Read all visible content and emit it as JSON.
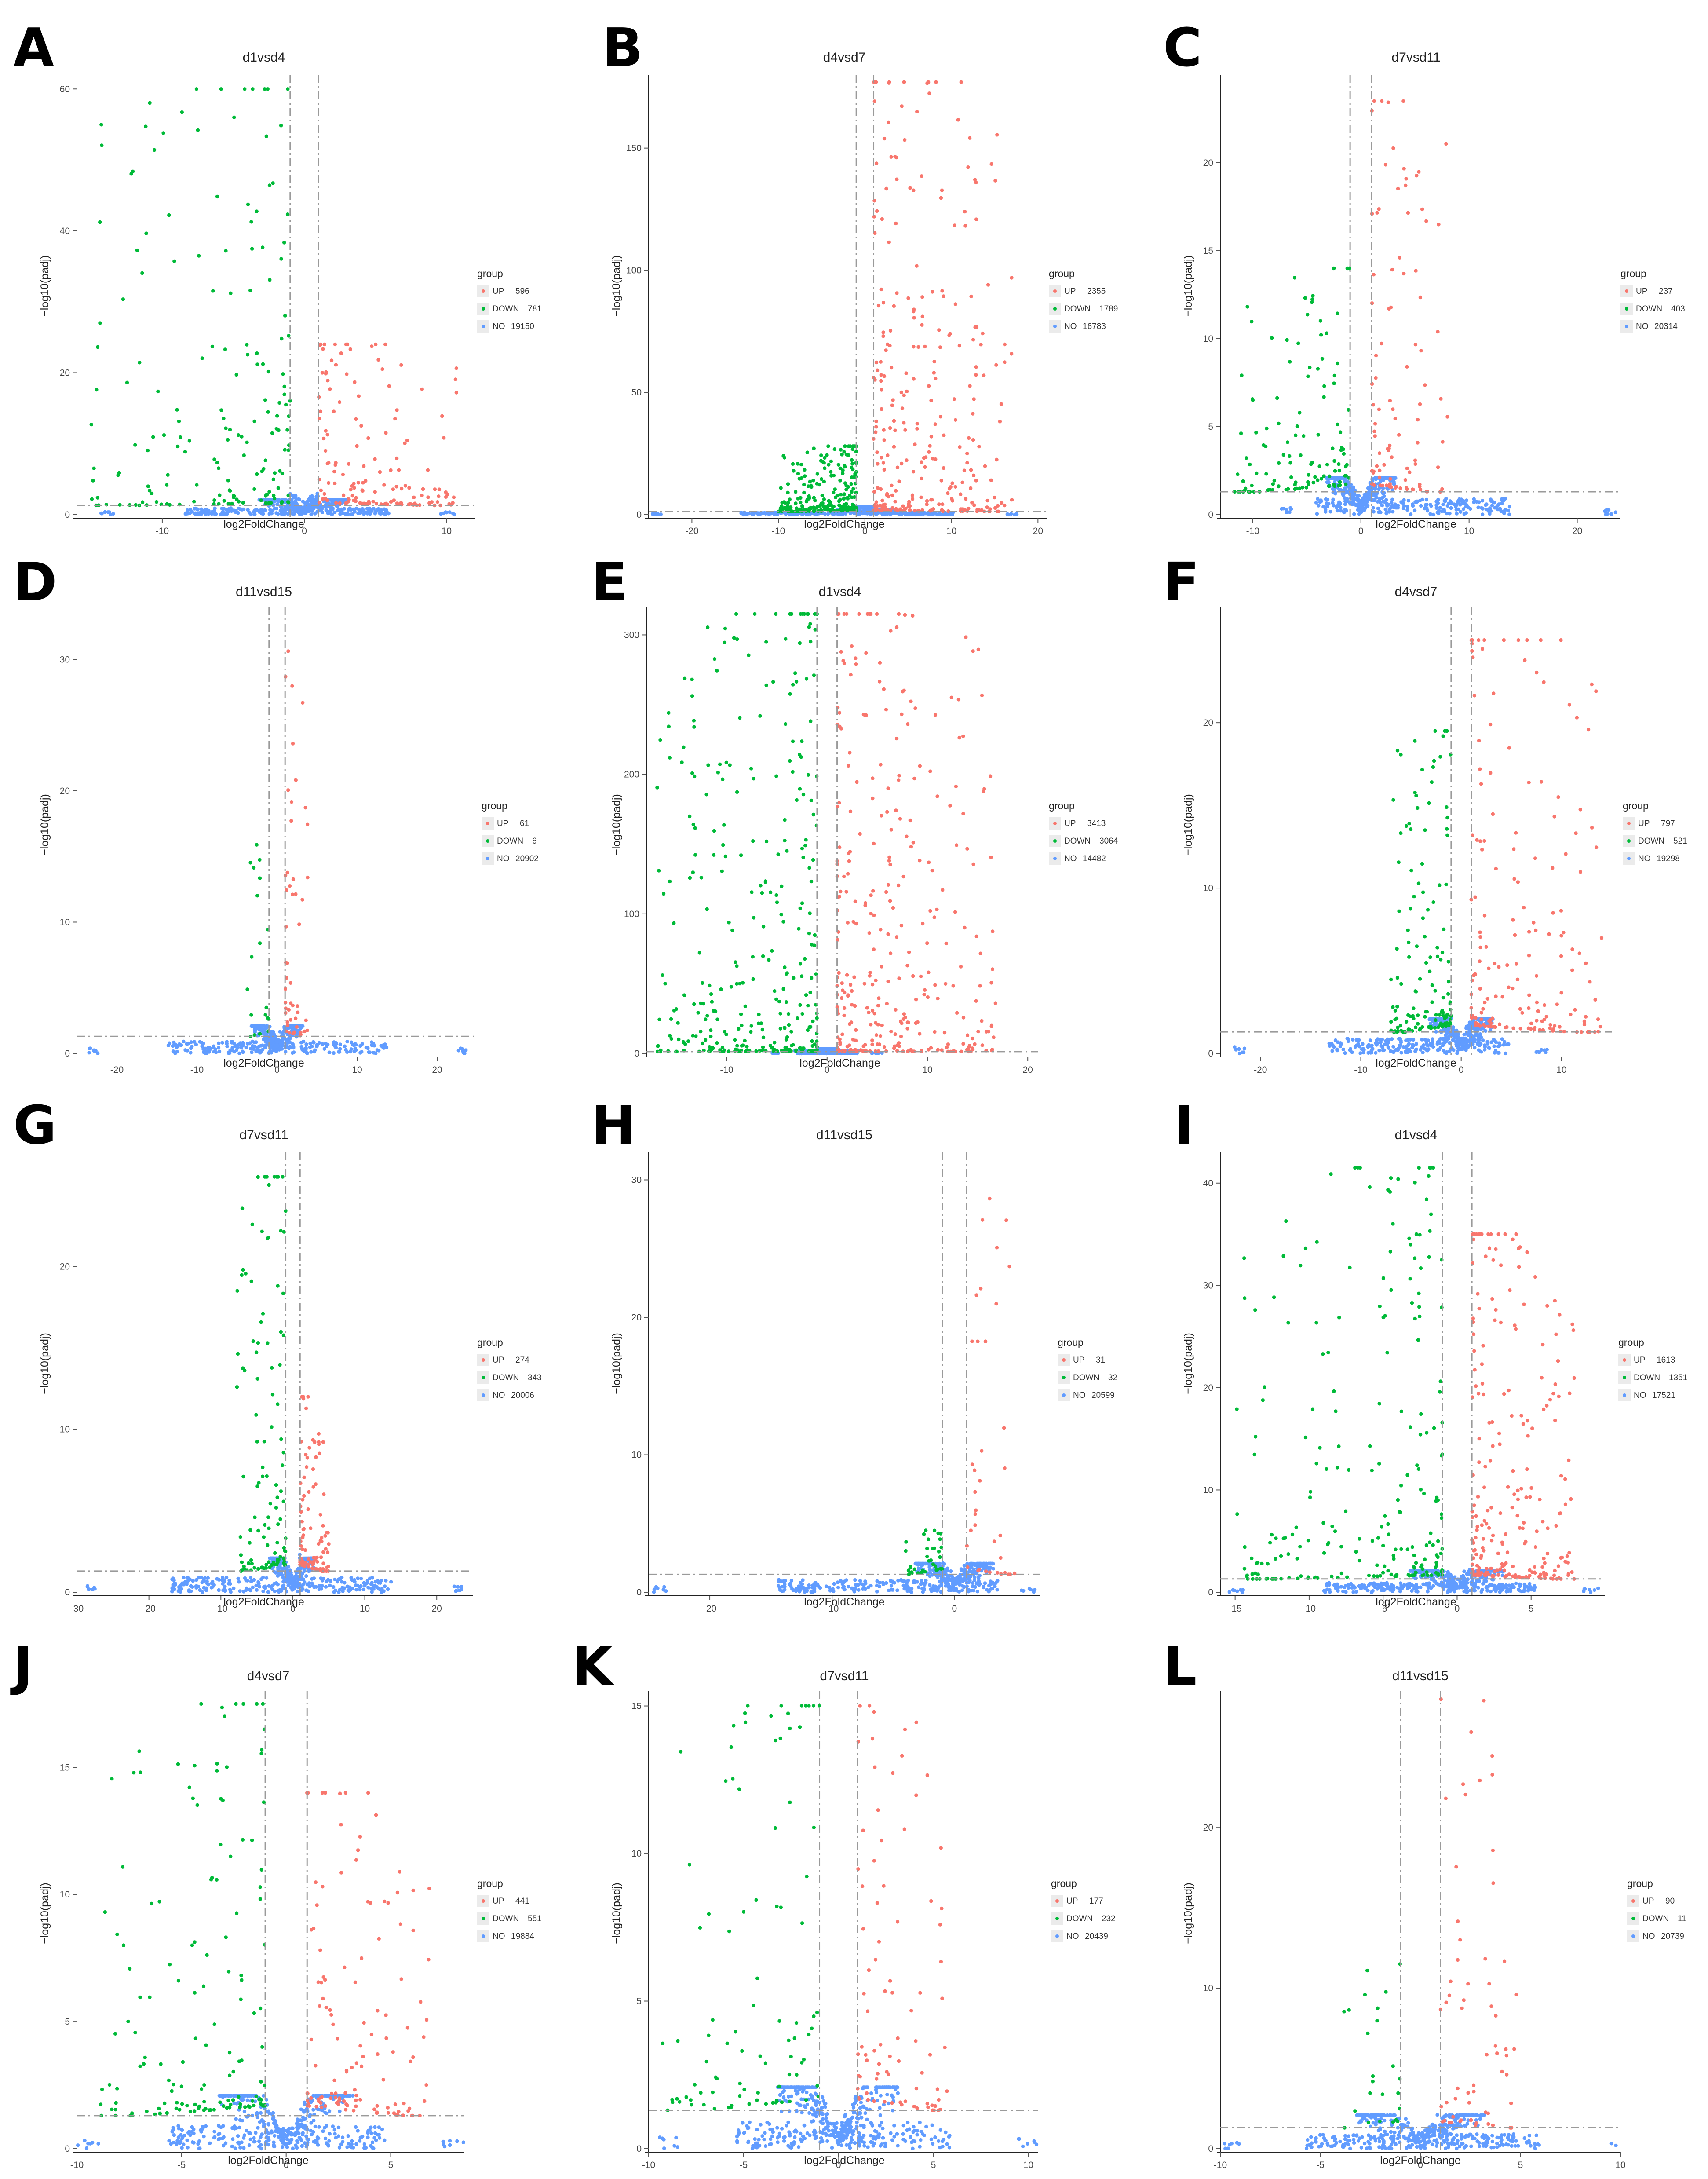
{
  "figure": {
    "colors": {
      "up": "#f8766d",
      "down": "#00ba38",
      "no": "#619cff"
    },
    "legend_title": "group",
    "x_axis_title": "log2FoldChange",
    "y_axis_title": "−log10(padj)"
  },
  "chart_data": [
    {
      "label": "A",
      "type": "scatter",
      "title": "d1vsd4",
      "xlabel": "log2FoldChange",
      "ylabel": "−log10(padj)",
      "xlim": [
        -16,
        12
      ],
      "ylim": [
        0,
        62
      ],
      "xticks": [
        -10,
        0,
        10
      ],
      "yticks": [
        0,
        20,
        40,
        60
      ],
      "ytick_labels": [
        "0",
        "20",
        "40",
        "60"
      ],
      "vlines": [
        -1,
        1
      ],
      "hline": 1.3,
      "series": [
        {
          "name": "UP",
          "count": 596
        },
        {
          "name": "DOWN",
          "count": 781
        },
        {
          "name": "NO",
          "count": 19150
        }
      ],
      "shape": {
        "up_max_x": 11,
        "down_min_x": -15,
        "up_peak_y": 24,
        "down_peak_y": 60,
        "no_min_x": -14,
        "no_max_x": 10
      }
    },
    {
      "label": "B",
      "type": "scatter",
      "title": "d4vsd7",
      "xlabel": "log2FoldChange",
      "ylabel": "−log10(padj)",
      "xlim": [
        -25,
        21
      ],
      "ylim": [
        0,
        180
      ],
      "xticks": [
        -20,
        -10,
        0,
        10,
        20
      ],
      "yticks": [
        0,
        50,
        100,
        150
      ],
      "ytick_labels": [
        "0",
        "50",
        "100",
        "150"
      ],
      "vlines": [
        -1,
        1
      ],
      "hline": 1.3,
      "series": [
        {
          "name": "UP",
          "count": 2355
        },
        {
          "name": "DOWN",
          "count": 1789
        },
        {
          "name": "NO",
          "count": 16783
        }
      ],
      "shape": {
        "up_max_x": 17,
        "down_min_x": -10,
        "up_peak_y": 177,
        "down_peak_y": 28,
        "no_min_x": -24,
        "no_max_x": 17
      }
    },
    {
      "label": "C",
      "type": "scatter",
      "title": "d7vsd11",
      "xlabel": "log2FoldChange",
      "ylabel": "−log10(padj)",
      "xlim": [
        -13,
        24
      ],
      "ylim": [
        0,
        25
      ],
      "xticks": [
        -10,
        0,
        10,
        20
      ],
      "yticks": [
        0,
        5,
        10,
        15,
        20
      ],
      "ytick_labels": [
        "0",
        "5",
        "10",
        "15",
        "20"
      ],
      "vlines": [
        -1,
        1
      ],
      "hline": 1.3,
      "series": [
        {
          "name": "UP",
          "count": 237
        },
        {
          "name": "DOWN",
          "count": 403
        },
        {
          "name": "NO",
          "count": 20314
        }
      ],
      "shape": {
        "up_max_x": 8,
        "down_min_x": -12,
        "up_peak_y": 23.5,
        "down_peak_y": 14,
        "no_min_x": -7,
        "no_max_x": 23
      }
    },
    {
      "label": "D",
      "type": "scatter",
      "title": "d11vsd15",
      "xlabel": "log2FoldChange",
      "ylabel": "−log10(padj)",
      "xlim": [
        -25,
        25
      ],
      "ylim": [
        0,
        34
      ],
      "xticks": [
        -20,
        -10,
        0,
        10,
        20
      ],
      "yticks": [
        0,
        10,
        20,
        30
      ],
      "ytick_labels": [
        "0",
        "10",
        "20",
        "30"
      ],
      "vlines": [
        -1,
        1
      ],
      "hline": 1.3,
      "series": [
        {
          "name": "UP",
          "count": 61
        },
        {
          "name": "DOWN",
          "count": 6
        },
        {
          "name": "NO",
          "count": 20902
        }
      ],
      "shape": {
        "up_max_x": 4,
        "down_min_x": -4,
        "up_peak_y": 32,
        "down_peak_y": 17,
        "no_min_x": -23,
        "no_max_x": 23
      }
    },
    {
      "label": "E",
      "type": "scatter",
      "title": "d1vsd4",
      "xlabel": "log2FoldChange",
      "ylabel": "−log10(padj)",
      "xlim": [
        -18,
        21
      ],
      "ylim": [
        0,
        320
      ],
      "xticks": [
        -10,
        0,
        10,
        20
      ],
      "yticks": [
        0,
        100,
        200,
        300
      ],
      "ytick_labels": [
        "0",
        "100",
        "200",
        "300"
      ],
      "vlines": [
        -1,
        1
      ],
      "hline": 1.3,
      "series": [
        {
          "name": "UP",
          "count": 3413
        },
        {
          "name": "DOWN",
          "count": 3064
        },
        {
          "name": "NO",
          "count": 14482
        }
      ],
      "shape": {
        "up_max_x": 17,
        "down_min_x": -17,
        "up_peak_y": 315,
        "down_peak_y": 315,
        "no_min_x": -5,
        "no_max_x": 5
      }
    },
    {
      "label": "F",
      "type": "scatter",
      "title": "d4vsd7",
      "xlabel": "log2FoldChange",
      "ylabel": "−log10(padj)",
      "xlim": [
        -24,
        15
      ],
      "ylim": [
        0,
        27
      ],
      "xticks": [
        -20,
        -10,
        0,
        10
      ],
      "yticks": [
        0,
        10,
        20
      ],
      "ytick_labels": [
        "0",
        "10",
        "20"
      ],
      "vlines": [
        -1,
        1
      ],
      "hline": 1.3,
      "series": [
        {
          "name": "UP",
          "count": 797
        },
        {
          "name": "DOWN",
          "count": 521
        },
        {
          "name": "NO",
          "count": 19298
        }
      ],
      "shape": {
        "up_max_x": 14,
        "down_min_x": -7,
        "up_peak_y": 25,
        "down_peak_y": 19.5,
        "no_min_x": -22,
        "no_max_x": 8
      }
    },
    {
      "label": "G",
      "type": "scatter",
      "title": "d7vsd11",
      "xlabel": "log2FoldChange",
      "ylabel": "−log10(padj)",
      "xlim": [
        -30,
        25
      ],
      "ylim": [
        0,
        27
      ],
      "xticks": [
        -30,
        -20,
        -10,
        0,
        10,
        20
      ],
      "yticks": [
        0,
        10,
        20
      ],
      "ytick_labels": [
        "0",
        "10",
        "20"
      ],
      "vlines": [
        -1,
        1
      ],
      "hline": 1.3,
      "series": [
        {
          "name": "UP",
          "count": 274
        },
        {
          "name": "DOWN",
          "count": 343
        },
        {
          "name": "NO",
          "count": 20006
        }
      ],
      "shape": {
        "up_max_x": 5,
        "down_min_x": -8,
        "up_peak_y": 12,
        "down_peak_y": 25.5,
        "no_min_x": -28,
        "no_max_x": 23
      }
    },
    {
      "label": "H",
      "type": "scatter",
      "title": "d11vsd15",
      "xlabel": "log2FoldChange",
      "ylabel": "−log10(padj)",
      "xlim": [
        -25,
        7
      ],
      "ylim": [
        0,
        32
      ],
      "xticks": [
        -20,
        -10,
        0
      ],
      "yticks": [
        0,
        10,
        20,
        30
      ],
      "ytick_labels": [
        "0",
        "10",
        "20",
        "30"
      ],
      "vlines": [
        -1,
        1
      ],
      "hline": 1.3,
      "series": [
        {
          "name": "UP",
          "count": 31
        },
        {
          "name": "DOWN",
          "count": 32
        },
        {
          "name": "NO",
          "count": 20599
        }
      ],
      "shape": {
        "up_max_x": 5,
        "down_min_x": -4,
        "up_peak_y": 31,
        "down_peak_y": 4.5,
        "no_min_x": -24,
        "no_max_x": 6
      }
    },
    {
      "label": "I",
      "type": "scatter",
      "title": "d1vsd4",
      "xlabel": "log2FoldChange",
      "ylabel": "−log10(padj)",
      "xlim": [
        -16,
        10
      ],
      "ylim": [
        0,
        43
      ],
      "xticks": [
        -15,
        -10,
        -5,
        0,
        5
      ],
      "yticks": [
        0,
        10,
        20,
        30,
        40
      ],
      "ytick_labels": [
        "0",
        "10",
        "20",
        "30",
        "40"
      ],
      "vlines": [
        -1,
        1
      ],
      "hline": 1.3,
      "series": [
        {
          "name": "UP",
          "count": 1613
        },
        {
          "name": "DOWN",
          "count": 1351
        },
        {
          "name": "NO",
          "count": 17521
        }
      ],
      "shape": {
        "up_max_x": 8,
        "down_min_x": -15,
        "up_peak_y": 35,
        "down_peak_y": 41.5,
        "no_min_x": -15,
        "no_max_x": 9
      }
    },
    {
      "label": "J",
      "type": "scatter",
      "title": "d4vsd7",
      "xlabel": "log2FoldChange",
      "ylabel": "−log10(padj)",
      "xlim": [
        -10,
        8.5
      ],
      "ylim": [
        0,
        18
      ],
      "xticks": [
        -10,
        -5,
        0,
        5
      ],
      "yticks": [
        0,
        5,
        10,
        15
      ],
      "ytick_labels": [
        "0",
        "5",
        "10",
        "15"
      ],
      "vlines": [
        -1,
        1
      ],
      "hline": 1.3,
      "series": [
        {
          "name": "UP",
          "count": 441
        },
        {
          "name": "DOWN",
          "count": 551
        },
        {
          "name": "NO",
          "count": 19884
        }
      ],
      "shape": {
        "up_max_x": 7,
        "down_min_x": -9,
        "up_peak_y": 14,
        "down_peak_y": 17.5,
        "no_min_x": -9.5,
        "no_max_x": 8
      }
    },
    {
      "label": "K",
      "type": "scatter",
      "title": "d7vsd11",
      "xlabel": "log2FoldChange",
      "ylabel": "−log10(padj)",
      "xlim": [
        -10,
        10.5
      ],
      "ylim": [
        0,
        15.5
      ],
      "xticks": [
        -10,
        -5,
        0,
        5,
        10
      ],
      "yticks": [
        0,
        5,
        10,
        15
      ],
      "ytick_labels": [
        "0",
        "5",
        "10",
        "15"
      ],
      "vlines": [
        -1,
        1
      ],
      "hline": 1.3,
      "series": [
        {
          "name": "UP",
          "count": 177
        },
        {
          "name": "DOWN",
          "count": 232
        },
        {
          "name": "NO",
          "count": 20439
        }
      ],
      "shape": {
        "up_max_x": 6,
        "down_min_x": -9.5,
        "up_peak_y": 15,
        "down_peak_y": 15,
        "no_min_x": -9,
        "no_max_x": 10
      }
    },
    {
      "label": "L",
      "type": "scatter",
      "title": "d11vsd15",
      "xlabel": "log2FoldChange",
      "ylabel": "−log10(padj)",
      "xlim": [
        -10,
        10
      ],
      "ylim": [
        0,
        28.5
      ],
      "xticks": [
        -10,
        -5,
        0,
        5,
        10
      ],
      "yticks": [
        0,
        10,
        20
      ],
      "ytick_labels": [
        "0",
        "10",
        "20"
      ],
      "vlines": [
        -1,
        1
      ],
      "hline": 1.3,
      "series": [
        {
          "name": "UP",
          "count": 90
        },
        {
          "name": "DOWN",
          "count": 11
        },
        {
          "name": "NO",
          "count": 20739
        }
      ],
      "shape": {
        "up_max_x": 5,
        "down_min_x": -4,
        "up_peak_y": 28,
        "down_peak_y": 11.5,
        "no_min_x": -9.5,
        "no_max_x": 10
      }
    }
  ]
}
